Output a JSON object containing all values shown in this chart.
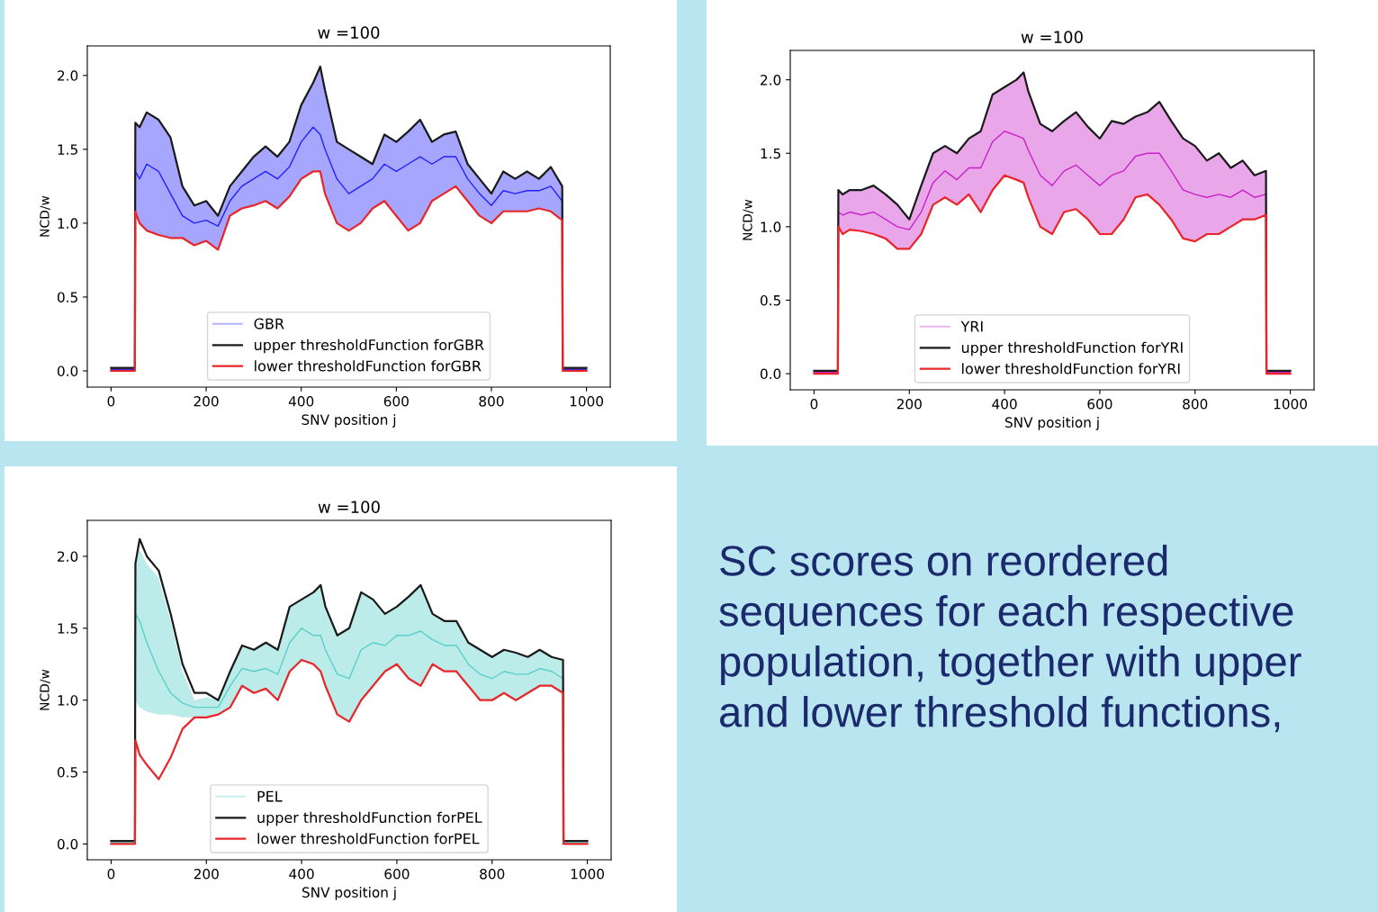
{
  "chart_data": [
    {
      "type": "line",
      "title": "w =100",
      "xlabel": "SNV position j",
      "ylabel": "NCD/w",
      "xlim": [
        -50,
        1050
      ],
      "ylim": [
        -0.11,
        2.2
      ],
      "xticks": [
        0,
        200,
        400,
        600,
        800,
        1000
      ],
      "yticks": [
        {
          "value": 0,
          "label": "0.0"
        },
        {
          "value": 0.5,
          "label": "0.5"
        },
        {
          "value": 1,
          "label": "1.0"
        },
        {
          "value": 1.5,
          "label": "1.5"
        },
        {
          "value": 2,
          "label": "2.0"
        }
      ],
      "legend": "bottom",
      "grid": false,
      "x": [
        0,
        50,
        51,
        60,
        75,
        100,
        125,
        150,
        175,
        200,
        225,
        250,
        275,
        300,
        325,
        350,
        375,
        400,
        425,
        440,
        450,
        475,
        500,
        525,
        550,
        575,
        600,
        625,
        650,
        675,
        700,
        725,
        750,
        775,
        800,
        825,
        850,
        875,
        900,
        925,
        949,
        950,
        1000
      ],
      "series": [
        {
          "name": "GBR",
          "color": "#0000ff",
          "values": [
            0.01,
            0.01,
            1.35,
            1.3,
            1.4,
            1.35,
            1.2,
            1.05,
            1.0,
            1.02,
            0.98,
            1.15,
            1.25,
            1.3,
            1.35,
            1.3,
            1.38,
            1.55,
            1.65,
            1.6,
            1.5,
            1.3,
            1.2,
            1.25,
            1.3,
            1.4,
            1.35,
            1.4,
            1.45,
            1.4,
            1.45,
            1.45,
            1.3,
            1.2,
            1.12,
            1.22,
            1.2,
            1.22,
            1.22,
            1.25,
            1.15,
            0.01,
            0.01
          ],
          "lower": [
            0.0,
            0.0,
            1.08,
            1.0,
            0.95,
            0.92,
            0.9,
            0.9,
            0.85,
            0.88,
            0.82,
            1.05,
            1.1,
            1.12,
            1.15,
            1.1,
            1.18,
            1.3,
            1.35,
            1.35,
            1.2,
            1.0,
            0.95,
            1.0,
            1.1,
            1.15,
            1.05,
            0.95,
            1.0,
            1.15,
            1.2,
            1.25,
            1.15,
            1.05,
            1.0,
            1.08,
            1.08,
            1.08,
            1.1,
            1.08,
            1.02,
            0.0,
            0.0
          ],
          "upper": [
            0.02,
            0.02,
            1.68,
            1.65,
            1.75,
            1.7,
            1.58,
            1.25,
            1.12,
            1.15,
            1.05,
            1.25,
            1.35,
            1.45,
            1.52,
            1.45,
            1.55,
            1.8,
            1.95,
            2.06,
            1.9,
            1.55,
            1.5,
            1.45,
            1.4,
            1.6,
            1.55,
            1.62,
            1.7,
            1.55,
            1.6,
            1.62,
            1.4,
            1.3,
            1.2,
            1.35,
            1.3,
            1.35,
            1.3,
            1.38,
            1.25,
            0.02,
            0.02
          ]
        },
        {
          "name": "upper thresholdFunction forGBR",
          "color": "#1a1a1a",
          "values": [
            0.02,
            0.02,
            1.68,
            1.65,
            1.75,
            1.7,
            1.58,
            1.25,
            1.12,
            1.15,
            1.05,
            1.25,
            1.35,
            1.45,
            1.52,
            1.45,
            1.55,
            1.8,
            1.95,
            2.06,
            1.9,
            1.55,
            1.5,
            1.45,
            1.4,
            1.6,
            1.55,
            1.62,
            1.7,
            1.55,
            1.6,
            1.62,
            1.4,
            1.3,
            1.2,
            1.35,
            1.3,
            1.35,
            1.3,
            1.38,
            1.25,
            0.02,
            0.02
          ]
        },
        {
          "name": "lower thresholdFunction forGBR",
          "color": "#e8262a",
          "values": [
            0.0,
            0.0,
            1.08,
            1.0,
            0.95,
            0.92,
            0.9,
            0.9,
            0.85,
            0.88,
            0.82,
            1.05,
            1.1,
            1.12,
            1.15,
            1.1,
            1.18,
            1.3,
            1.35,
            1.35,
            1.2,
            1.0,
            0.95,
            1.0,
            1.1,
            1.15,
            1.05,
            0.95,
            1.0,
            1.15,
            1.2,
            1.25,
            1.15,
            1.05,
            1.0,
            1.08,
            1.08,
            1.08,
            1.1,
            1.08,
            1.02,
            0.0,
            0.0
          ]
        }
      ]
    },
    {
      "type": "line",
      "title": "w =100",
      "xlabel": "SNV position j",
      "ylabel": "NCD/w",
      "xlim": [
        -50,
        1050
      ],
      "ylim": [
        -0.11,
        2.2
      ],
      "xticks": [
        0,
        200,
        400,
        600,
        800,
        1000
      ],
      "yticks": [
        {
          "value": 0,
          "label": "0.0"
        },
        {
          "value": 0.5,
          "label": "0.5"
        },
        {
          "value": 1,
          "label": "1.0"
        },
        {
          "value": 1.5,
          "label": "1.5"
        },
        {
          "value": 2,
          "label": "2.0"
        }
      ],
      "legend": "bottom",
      "grid": false,
      "x": [
        0,
        50,
        51,
        60,
        75,
        100,
        125,
        150,
        175,
        200,
        225,
        250,
        275,
        300,
        325,
        350,
        375,
        400,
        425,
        440,
        450,
        475,
        500,
        525,
        550,
        575,
        600,
        625,
        650,
        675,
        700,
        725,
        750,
        775,
        800,
        825,
        850,
        875,
        900,
        925,
        949,
        950,
        1000
      ],
      "series": [
        {
          "name": "YRI",
          "color": "#bf00bf",
          "values": [
            0.01,
            0.01,
            1.1,
            1.08,
            1.1,
            1.08,
            1.1,
            1.05,
            1.0,
            0.98,
            1.1,
            1.3,
            1.38,
            1.32,
            1.4,
            1.4,
            1.58,
            1.65,
            1.62,
            1.6,
            1.52,
            1.35,
            1.28,
            1.38,
            1.42,
            1.35,
            1.28,
            1.35,
            1.38,
            1.48,
            1.5,
            1.5,
            1.38,
            1.25,
            1.22,
            1.2,
            1.22,
            1.2,
            1.25,
            1.2,
            1.22,
            0.01,
            0.01
          ],
          "lower": [
            0.0,
            0.0,
            1.0,
            0.95,
            0.98,
            0.97,
            0.95,
            0.92,
            0.85,
            0.85,
            0.95,
            1.15,
            1.2,
            1.15,
            1.22,
            1.1,
            1.25,
            1.35,
            1.32,
            1.3,
            1.2,
            1.0,
            0.95,
            1.1,
            1.12,
            1.05,
            0.95,
            0.95,
            1.05,
            1.2,
            1.22,
            1.15,
            1.05,
            0.92,
            0.9,
            0.95,
            0.95,
            1.0,
            1.05,
            1.05,
            1.08,
            0.0,
            0.0
          ],
          "upper": [
            0.02,
            0.02,
            1.25,
            1.22,
            1.25,
            1.25,
            1.28,
            1.22,
            1.15,
            1.05,
            1.28,
            1.5,
            1.55,
            1.5,
            1.6,
            1.65,
            1.9,
            1.95,
            2.0,
            2.05,
            1.92,
            1.7,
            1.65,
            1.72,
            1.78,
            1.68,
            1.6,
            1.72,
            1.7,
            1.75,
            1.78,
            1.85,
            1.72,
            1.6,
            1.55,
            1.45,
            1.5,
            1.4,
            1.45,
            1.35,
            1.38,
            0.02,
            0.02
          ]
        },
        {
          "name": "upper thresholdFunction forYRI",
          "color": "#1a1a1a",
          "values": [
            0.02,
            0.02,
            1.25,
            1.22,
            1.25,
            1.25,
            1.28,
            1.22,
            1.15,
            1.05,
            1.28,
            1.5,
            1.55,
            1.5,
            1.6,
            1.65,
            1.9,
            1.95,
            2.0,
            2.05,
            1.92,
            1.7,
            1.65,
            1.72,
            1.78,
            1.68,
            1.6,
            1.72,
            1.7,
            1.75,
            1.78,
            1.85,
            1.72,
            1.6,
            1.55,
            1.45,
            1.5,
            1.4,
            1.45,
            1.35,
            1.38,
            0.02,
            0.02
          ]
        },
        {
          "name": "lower thresholdFunction forYRI",
          "color": "#e8262a",
          "values": [
            0.0,
            0.0,
            1.0,
            0.95,
            0.98,
            0.97,
            0.95,
            0.92,
            0.85,
            0.85,
            0.95,
            1.15,
            1.2,
            1.15,
            1.22,
            1.1,
            1.25,
            1.35,
            1.32,
            1.3,
            1.2,
            1.0,
            0.95,
            1.1,
            1.12,
            1.05,
            0.95,
            0.95,
            1.05,
            1.2,
            1.22,
            1.15,
            1.05,
            0.92,
            0.9,
            0.95,
            0.95,
            1.0,
            1.05,
            1.05,
            1.08,
            0.0,
            0.0
          ]
        }
      ]
    },
    {
      "type": "line",
      "title": "w =100",
      "xlabel": "SNV position j",
      "ylabel": "NCD/w",
      "xlim": [
        -50,
        1050
      ],
      "ylim": [
        -0.11,
        2.25
      ],
      "xticks": [
        0,
        200,
        400,
        600,
        800,
        1000
      ],
      "yticks": [
        {
          "value": 0,
          "label": "0.0"
        },
        {
          "value": 0.5,
          "label": "0.5"
        },
        {
          "value": 1,
          "label": "1.0"
        },
        {
          "value": 1.5,
          "label": "1.5"
        },
        {
          "value": 2,
          "label": "2.0"
        }
      ],
      "legend": "bottom",
      "grid": false,
      "x": [
        0,
        50,
        51,
        60,
        75,
        100,
        125,
        150,
        175,
        200,
        225,
        250,
        275,
        300,
        325,
        350,
        375,
        400,
        425,
        440,
        450,
        475,
        500,
        525,
        550,
        575,
        600,
        625,
        650,
        675,
        700,
        725,
        750,
        775,
        800,
        825,
        850,
        875,
        900,
        925,
        949,
        950,
        1000
      ],
      "series": [
        {
          "name": "PEL",
          "color": "#40c8c0",
          "values": [
            0.01,
            0.01,
            1.6,
            1.55,
            1.4,
            1.2,
            1.05,
            0.98,
            0.95,
            0.95,
            0.95,
            1.1,
            1.22,
            1.2,
            1.22,
            1.18,
            1.4,
            1.5,
            1.45,
            1.45,
            1.35,
            1.18,
            1.15,
            1.35,
            1.4,
            1.38,
            1.45,
            1.45,
            1.48,
            1.42,
            1.38,
            1.38,
            1.25,
            1.18,
            1.15,
            1.2,
            1.18,
            1.18,
            1.22,
            1.2,
            1.15,
            0.01,
            0.01
          ],
          "lower": [
            0.0,
            0.0,
            1.0,
            0.95,
            0.92,
            0.9,
            0.9,
            0.88,
            0.88,
            0.88,
            0.9,
            0.95,
            1.1,
            1.05,
            1.08,
            1.0,
            1.2,
            1.28,
            1.25,
            1.2,
            1.1,
            0.9,
            0.85,
            1.0,
            1.1,
            1.2,
            1.25,
            1.15,
            1.1,
            1.25,
            1.2,
            1.2,
            1.1,
            1.0,
            1.0,
            1.05,
            1.0,
            1.05,
            1.1,
            1.1,
            1.05,
            0.0,
            0.0
          ],
          "upper": [
            0.02,
            0.02,
            1.95,
            2.05,
            1.95,
            1.85,
            1.55,
            1.2,
            1.0,
            1.02,
            1.0,
            1.2,
            1.38,
            1.35,
            1.4,
            1.35,
            1.65,
            1.7,
            1.75,
            1.8,
            1.65,
            1.45,
            1.5,
            1.75,
            1.7,
            1.6,
            1.65,
            1.72,
            1.8,
            1.6,
            1.55,
            1.55,
            1.4,
            1.35,
            1.3,
            1.35,
            1.33,
            1.3,
            1.35,
            1.3,
            1.28,
            0.02,
            0.02
          ]
        },
        {
          "name": "upper thresholdFunction forPEL",
          "color": "#1a1a1a",
          "values": [
            0.02,
            0.02,
            1.95,
            2.12,
            2.0,
            1.9,
            1.6,
            1.25,
            1.05,
            1.05,
            1.0,
            1.2,
            1.38,
            1.35,
            1.4,
            1.35,
            1.65,
            1.7,
            1.75,
            1.8,
            1.65,
            1.45,
            1.5,
            1.75,
            1.7,
            1.6,
            1.65,
            1.72,
            1.8,
            1.6,
            1.55,
            1.55,
            1.4,
            1.35,
            1.3,
            1.35,
            1.33,
            1.3,
            1.35,
            1.3,
            1.28,
            0.02,
            0.02
          ]
        },
        {
          "name": "lower thresholdFunction forPEL",
          "color": "#e8262a",
          "values": [
            0.0,
            0.0,
            0.72,
            0.62,
            0.55,
            0.45,
            0.6,
            0.8,
            0.88,
            0.88,
            0.9,
            0.95,
            1.1,
            1.05,
            1.08,
            1.0,
            1.2,
            1.28,
            1.25,
            1.2,
            1.1,
            0.9,
            0.85,
            1.0,
            1.1,
            1.2,
            1.25,
            1.15,
            1.1,
            1.25,
            1.2,
            1.2,
            1.1,
            1.0,
            1.0,
            1.05,
            1.0,
            1.05,
            1.1,
            1.1,
            1.05,
            0.0,
            0.0
          ]
        }
      ]
    },
    {
      "type": "other",
      "annotations": [
        "SC scores on reordered sequences for each respective population, together with upper and lower threshold functions,"
      ]
    }
  ]
}
